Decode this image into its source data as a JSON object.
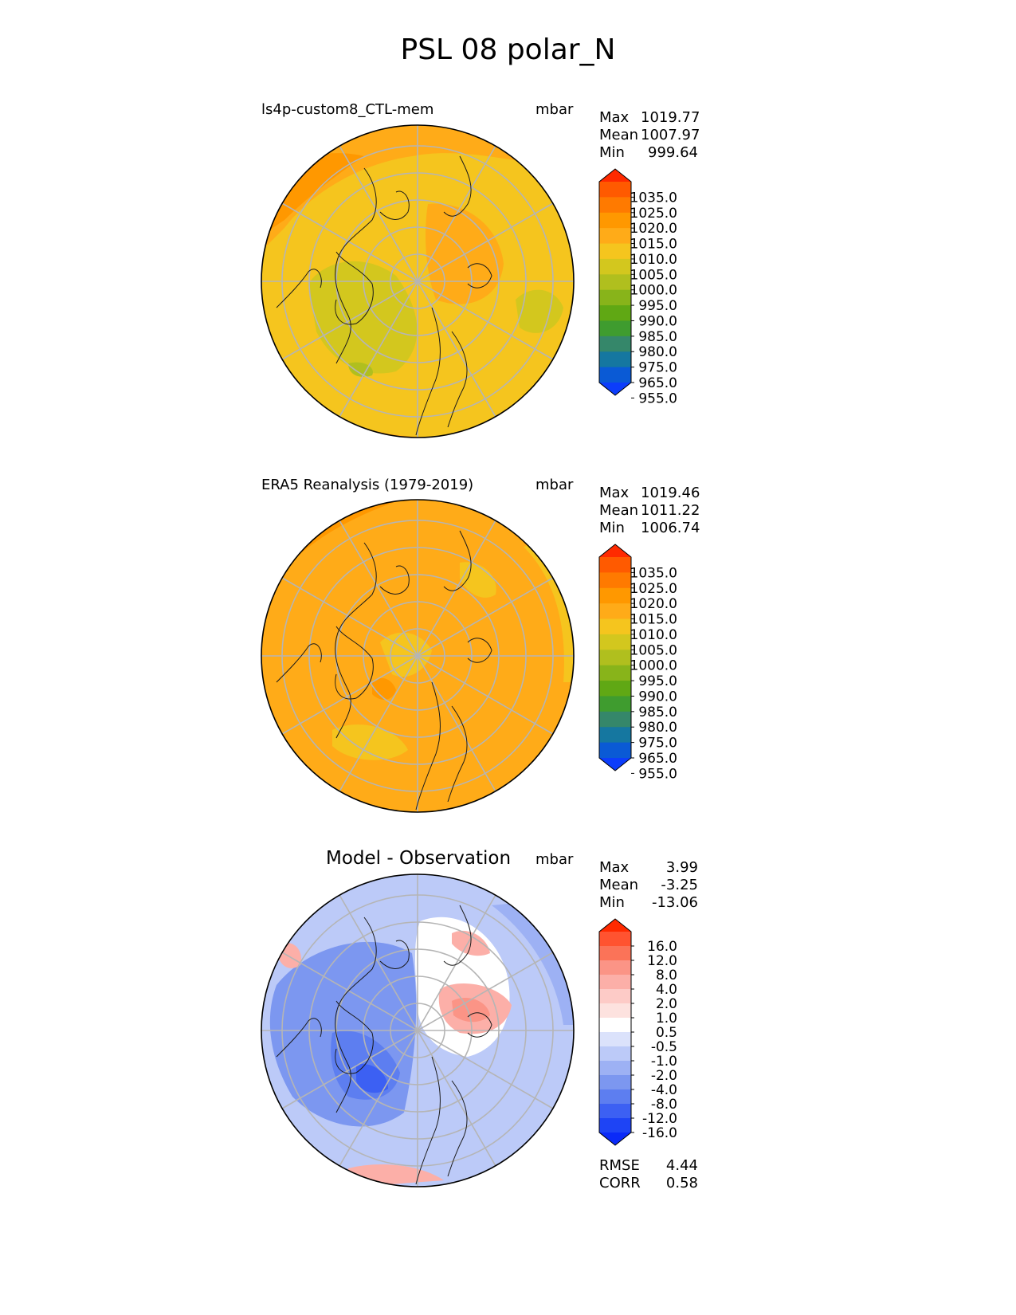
{
  "chart_data": [
    {
      "type": "heatmap",
      "title": "PSL 08 polar_N",
      "panel_title": "ls4p-custom8_CTL-mem",
      "units": "mbar",
      "stats": [
        {
          "label": "Max",
          "value": "1019.77"
        },
        {
          "label": "Mean",
          "value": "1007.97"
        },
        {
          "label": "Min",
          "value": "999.64"
        }
      ],
      "colorbar": {
        "levels": [
          "1035.0",
          "1025.0",
          "1020.0",
          "1015.0",
          "1010.0",
          "1005.0",
          "1000.0",
          "995.0",
          "990.0",
          "985.0",
          "980.0",
          "975.0",
          "965.0",
          "955.0"
        ],
        "colors": [
          "#ff2a00",
          "#ff5a00",
          "#ff7a00",
          "#ff9800",
          "#ffab18",
          "#f5c51e",
          "#d3c71e",
          "#b0bf1e",
          "#88b41a",
          "#60a814",
          "#3f9c2f",
          "#35876a",
          "#1577a0",
          "#0a5ad5",
          "#0c3dfb"
        ]
      }
    },
    {
      "type": "heatmap",
      "panel_title": "ERA5 Reanalysis (1979-2019)",
      "units": "mbar",
      "stats": [
        {
          "label": "Max",
          "value": "1019.46"
        },
        {
          "label": "Mean",
          "value": "1011.22"
        },
        {
          "label": "Min",
          "value": "1006.74"
        }
      ],
      "colorbar": {
        "levels": [
          "1035.0",
          "1025.0",
          "1020.0",
          "1015.0",
          "1010.0",
          "1005.0",
          "1000.0",
          "995.0",
          "990.0",
          "985.0",
          "980.0",
          "975.0",
          "965.0",
          "955.0"
        ],
        "colors": [
          "#ff2a00",
          "#ff5a00",
          "#ff7a00",
          "#ff9800",
          "#ffab18",
          "#f5c51e",
          "#d3c71e",
          "#b0bf1e",
          "#88b41a",
          "#60a814",
          "#3f9c2f",
          "#35876a",
          "#1577a0",
          "#0a5ad5",
          "#0c3dfb"
        ]
      }
    },
    {
      "type": "heatmap",
      "panel_title": "Model - Observation",
      "units": "mbar",
      "stats": [
        {
          "label": "Max",
          "value": "3.99"
        },
        {
          "label": "Mean",
          "value": "-3.25"
        },
        {
          "label": "Min",
          "value": "-13.06"
        }
      ],
      "metrics": [
        {
          "label": "RMSE",
          "value": "4.44"
        },
        {
          "label": "CORR",
          "value": "0.58"
        }
      ],
      "colorbar": {
        "levels": [
          "16.0",
          "12.0",
          "8.0",
          "4.0",
          "2.0",
          "1.0",
          "0.5",
          "-0.5",
          "-1.0",
          "-2.0",
          "-4.0",
          "-8.0",
          "-12.0",
          "-16.0"
        ],
        "colors": [
          "#ff2a00",
          "#ff5330",
          "#fb7358",
          "#fb9486",
          "#fcafa8",
          "#fdcbc7",
          "#fde2df",
          "#ffffff",
          "#dbe2fb",
          "#bccaf8",
          "#9db1f4",
          "#7c97f0",
          "#5d7ef0",
          "#3c60f3",
          "#1e44f5",
          "#0a2af8"
        ]
      }
    }
  ]
}
